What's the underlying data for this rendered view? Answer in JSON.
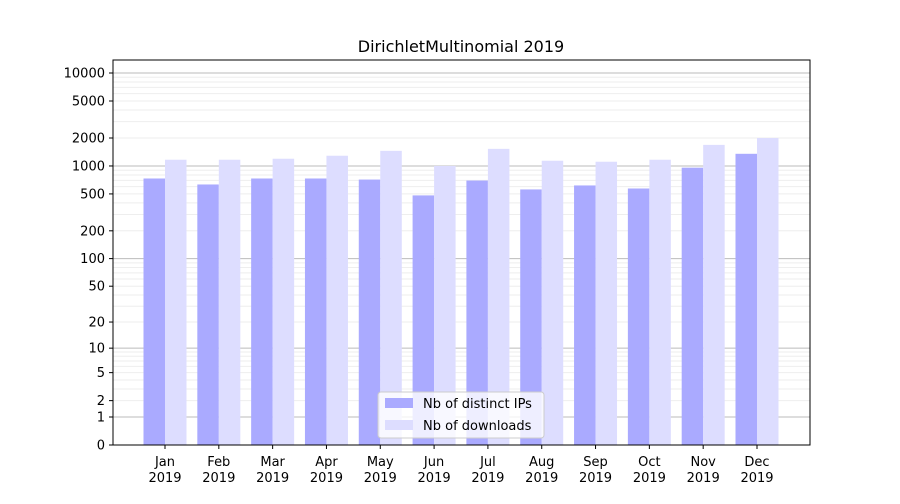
{
  "chart_data": {
    "type": "bar",
    "title": "DirichletMultinomial 2019",
    "xlabel": "",
    "ylabel": "",
    "yscale": "log(1+y)",
    "ylim": [
      0,
      13800
    ],
    "yticks": [
      0,
      1,
      2,
      5,
      10,
      20,
      50,
      100,
      200,
      500,
      1000,
      2000,
      5000,
      10000
    ],
    "grid": true,
    "legend_placement": "bottom-center",
    "categories": [
      "Jan\n2019",
      "Feb\n2019",
      "Mar\n2019",
      "Apr\n2019",
      "May\n2019",
      "Jun\n2019",
      "Jul\n2019",
      "Aug\n2019",
      "Sep\n2019",
      "Oct\n2019",
      "Nov\n2019",
      "Dec\n2019"
    ],
    "series": [
      {
        "name": "Nb of distinct IPs",
        "color": "#aaaaff",
        "values": [
          733,
          632,
          733,
          733,
          714,
          482,
          697,
          559,
          617,
          572,
          959,
          1352
        ]
      },
      {
        "name": "Nb of downloads",
        "color": "#ddddff",
        "values": [
          1167,
          1167,
          1196,
          1288,
          1455,
          1000,
          1528,
          1138,
          1111,
          1167,
          1686,
          2000
        ]
      }
    ]
  }
}
